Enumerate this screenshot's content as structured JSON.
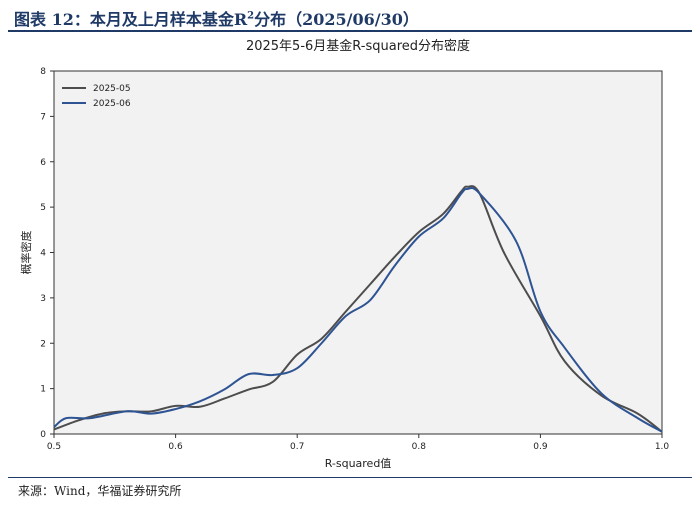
{
  "figure": {
    "title_prefix": "图表 12：本月及上月样本基金R",
    "title_sup": "2",
    "title_suffix": "分布（2025/06/30）",
    "source": "来源：Wind，华福证券研究所"
  },
  "colors": {
    "series_0": "#4d4d4d",
    "series_1": "#2e5494",
    "plot_bg": "#f2f2f2",
    "header_blue": "#1f3a66"
  },
  "chart_data": {
    "type": "line",
    "title": "2025年5-6月基金R-squared分布密度",
    "xlabel": "R-squared值",
    "ylabel": "概率密度",
    "xlim": [
      0.5,
      1.0
    ],
    "ylim": [
      0,
      8
    ],
    "xticks": [
      "0.5",
      "0.6",
      "0.7",
      "0.8",
      "0.9",
      "1.0"
    ],
    "yticks": [
      "0",
      "1",
      "2",
      "3",
      "4",
      "5",
      "6",
      "7",
      "8"
    ],
    "grid": false,
    "legend_position": "top-left",
    "series": [
      {
        "name": "2025-05",
        "x": [
          0.5,
          0.52,
          0.54,
          0.56,
          0.58,
          0.6,
          0.62,
          0.64,
          0.66,
          0.68,
          0.7,
          0.72,
          0.74,
          0.76,
          0.78,
          0.8,
          0.82,
          0.835,
          0.84,
          0.85,
          0.87,
          0.9,
          0.92,
          0.95,
          0.98,
          1.0
        ],
        "y": [
          0.1,
          0.3,
          0.45,
          0.5,
          0.5,
          0.62,
          0.6,
          0.78,
          0.98,
          1.15,
          1.75,
          2.1,
          2.7,
          3.3,
          3.9,
          4.45,
          4.85,
          5.35,
          5.45,
          5.3,
          4.0,
          2.6,
          1.6,
          0.85,
          0.45,
          0.05
        ]
      },
      {
        "name": "2025-06",
        "x": [
          0.5,
          0.51,
          0.53,
          0.56,
          0.58,
          0.6,
          0.62,
          0.64,
          0.66,
          0.68,
          0.7,
          0.72,
          0.74,
          0.76,
          0.78,
          0.8,
          0.82,
          0.835,
          0.84,
          0.85,
          0.88,
          0.9,
          0.92,
          0.95,
          0.98,
          1.0
        ],
        "y": [
          0.15,
          0.35,
          0.35,
          0.5,
          0.45,
          0.55,
          0.72,
          0.98,
          1.32,
          1.3,
          1.45,
          2.0,
          2.6,
          2.95,
          3.7,
          4.35,
          4.75,
          5.3,
          5.4,
          5.3,
          4.25,
          2.7,
          1.9,
          0.9,
          0.35,
          0.05
        ]
      }
    ]
  }
}
